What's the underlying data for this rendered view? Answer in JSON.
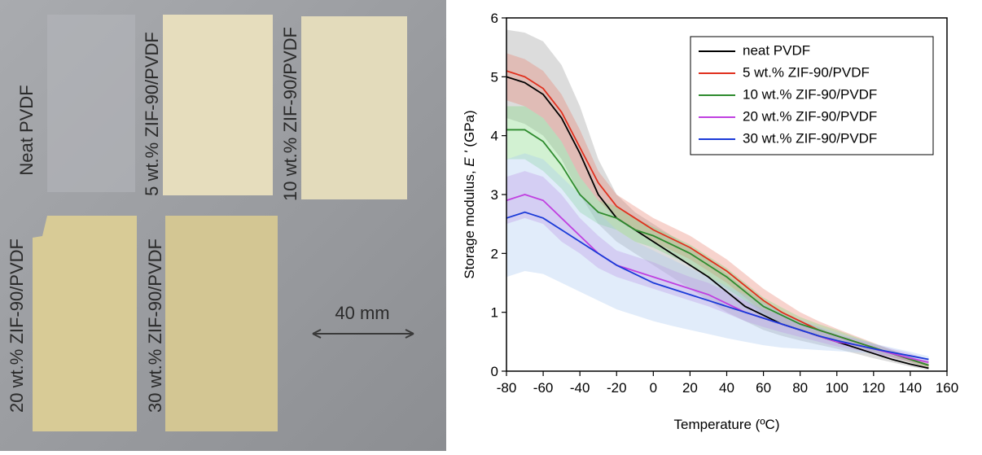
{
  "photo": {
    "labels": [
      "Neat PVDF",
      "5 wt.% ZIF-90/PVDF",
      "10 wt.% ZIF-90/PVDF",
      "20 wt.% ZIF-90/PVDF",
      "30 wt.% ZIF-90/PVDF"
    ],
    "scale_label": "40 mm"
  },
  "chart_data": {
    "type": "line",
    "xlabel": "Temperature (ºC)",
    "ylabel": [
      "Storage modulus, ",
      "E '",
      " (GPa)"
    ],
    "x": [
      -80,
      -70,
      -60,
      -50,
      -40,
      -30,
      -20,
      -10,
      0,
      10,
      20,
      30,
      40,
      50,
      60,
      70,
      80,
      90,
      100,
      110,
      120,
      130,
      140,
      150
    ],
    "xlim": [
      -80,
      160
    ],
    "xticks": [
      -80,
      -60,
      -40,
      -20,
      0,
      20,
      40,
      60,
      80,
      100,
      120,
      140,
      160
    ],
    "ylim": [
      0,
      6
    ],
    "yticks": [
      0,
      1,
      2,
      3,
      4,
      5,
      6
    ],
    "legend": "upper right",
    "series": [
      {
        "name": "neat PVDF",
        "color": "#000000",
        "band_color": "#9a9a9a",
        "values": [
          5.0,
          4.9,
          4.7,
          4.3,
          3.7,
          3.0,
          2.6,
          2.4,
          2.2,
          2.0,
          1.8,
          1.6,
          1.35,
          1.1,
          0.95,
          0.8,
          0.7,
          0.6,
          0.5,
          0.4,
          0.3,
          0.2,
          0.12,
          0.05
        ],
        "upper": [
          5.8,
          5.75,
          5.6,
          5.2,
          4.5,
          3.6,
          3.0,
          2.7,
          2.5,
          2.3,
          2.1,
          1.9,
          1.65,
          1.4,
          1.2,
          1.0,
          0.85,
          0.75,
          0.62,
          0.5,
          0.4,
          0.3,
          0.2,
          0.1
        ],
        "lower": [
          4.3,
          4.2,
          4.0,
          3.6,
          3.0,
          2.5,
          2.2,
          2.0,
          1.8,
          1.6,
          1.4,
          1.2,
          1.0,
          0.85,
          0.7,
          0.6,
          0.52,
          0.45,
          0.38,
          0.3,
          0.22,
          0.15,
          0.08,
          0.02
        ]
      },
      {
        "name": "5 wt.% ZIF-90/PVDF",
        "color": "#e0301e",
        "band_color": "#e88070",
        "values": [
          5.1,
          5.0,
          4.8,
          4.4,
          3.8,
          3.2,
          2.8,
          2.6,
          2.4,
          2.25,
          2.1,
          1.9,
          1.7,
          1.45,
          1.2,
          1.0,
          0.85,
          0.7,
          0.6,
          0.5,
          0.4,
          0.3,
          0.2,
          0.1
        ],
        "upper": [
          5.4,
          5.3,
          5.1,
          4.7,
          4.1,
          3.4,
          3.0,
          2.8,
          2.6,
          2.45,
          2.3,
          2.1,
          1.9,
          1.65,
          1.4,
          1.2,
          1.0,
          0.85,
          0.72,
          0.6,
          0.48,
          0.36,
          0.25,
          0.12
        ],
        "lower": [
          4.6,
          4.5,
          4.3,
          3.9,
          3.3,
          2.9,
          2.6,
          2.4,
          2.2,
          2.05,
          1.9,
          1.7,
          1.5,
          1.25,
          1.0,
          0.82,
          0.7,
          0.57,
          0.48,
          0.4,
          0.32,
          0.24,
          0.15,
          0.06
        ]
      },
      {
        "name": "10 wt.% ZIF-90/PVDF",
        "color": "#2e8b2e",
        "band_color": "#7ed67e",
        "values": [
          4.1,
          4.1,
          3.9,
          3.5,
          3.0,
          2.7,
          2.6,
          2.4,
          2.3,
          2.15,
          2.0,
          1.8,
          1.6,
          1.35,
          1.1,
          0.95,
          0.8,
          0.7,
          0.6,
          0.5,
          0.4,
          0.3,
          0.2,
          0.1
        ],
        "upper": [
          4.5,
          4.5,
          4.3,
          3.9,
          3.3,
          2.9,
          2.8,
          2.6,
          2.45,
          2.3,
          2.15,
          1.95,
          1.75,
          1.5,
          1.25,
          1.08,
          0.92,
          0.8,
          0.7,
          0.58,
          0.47,
          0.36,
          0.25,
          0.13
        ],
        "lower": [
          3.6,
          3.6,
          3.4,
          3.1,
          2.7,
          2.5,
          2.4,
          2.2,
          2.1,
          1.95,
          1.8,
          1.6,
          1.4,
          1.2,
          0.95,
          0.82,
          0.68,
          0.6,
          0.5,
          0.42,
          0.33,
          0.24,
          0.15,
          0.07
        ]
      },
      {
        "name": "20 wt.% ZIF-90/PVDF",
        "color": "#c040e0",
        "band_color": "#c77de0",
        "values": [
          2.9,
          3.0,
          2.9,
          2.6,
          2.3,
          2.0,
          1.8,
          1.7,
          1.6,
          1.5,
          1.4,
          1.3,
          1.15,
          1.0,
          0.9,
          0.8,
          0.7,
          0.6,
          0.5,
          0.45,
          0.38,
          0.3,
          0.22,
          0.15
        ],
        "upper": [
          3.3,
          3.4,
          3.3,
          3.0,
          2.6,
          2.3,
          2.05,
          1.95,
          1.85,
          1.72,
          1.6,
          1.5,
          1.35,
          1.2,
          1.05,
          0.95,
          0.82,
          0.72,
          0.62,
          0.55,
          0.46,
          0.38,
          0.3,
          0.2
        ],
        "lower": [
          2.5,
          2.6,
          2.5,
          2.2,
          2.0,
          1.75,
          1.6,
          1.5,
          1.4,
          1.3,
          1.2,
          1.1,
          0.98,
          0.85,
          0.75,
          0.66,
          0.58,
          0.5,
          0.42,
          0.36,
          0.3,
          0.23,
          0.16,
          0.1
        ]
      },
      {
        "name": "30 wt.% ZIF-90/PVDF",
        "color": "#1a3ad8",
        "band_color": "#a8c8f0",
        "values": [
          2.6,
          2.7,
          2.6,
          2.4,
          2.2,
          2.0,
          1.8,
          1.65,
          1.5,
          1.4,
          1.3,
          1.2,
          1.1,
          1.0,
          0.9,
          0.8,
          0.7,
          0.6,
          0.52,
          0.45,
          0.38,
          0.32,
          0.26,
          0.2
        ],
        "upper": [
          3.6,
          3.7,
          3.6,
          3.3,
          3.0,
          2.7,
          2.4,
          2.2,
          2.05,
          1.9,
          1.75,
          1.6,
          1.45,
          1.3,
          1.15,
          1.0,
          0.88,
          0.76,
          0.66,
          0.56,
          0.47,
          0.4,
          0.33,
          0.25
        ],
        "lower": [
          1.6,
          1.7,
          1.65,
          1.5,
          1.35,
          1.2,
          1.05,
          0.95,
          0.85,
          0.77,
          0.7,
          0.63,
          0.56,
          0.5,
          0.44,
          0.4,
          0.38,
          0.36,
          0.34,
          0.32,
          0.3,
          0.26,
          0.2,
          0.15
        ]
      }
    ]
  }
}
